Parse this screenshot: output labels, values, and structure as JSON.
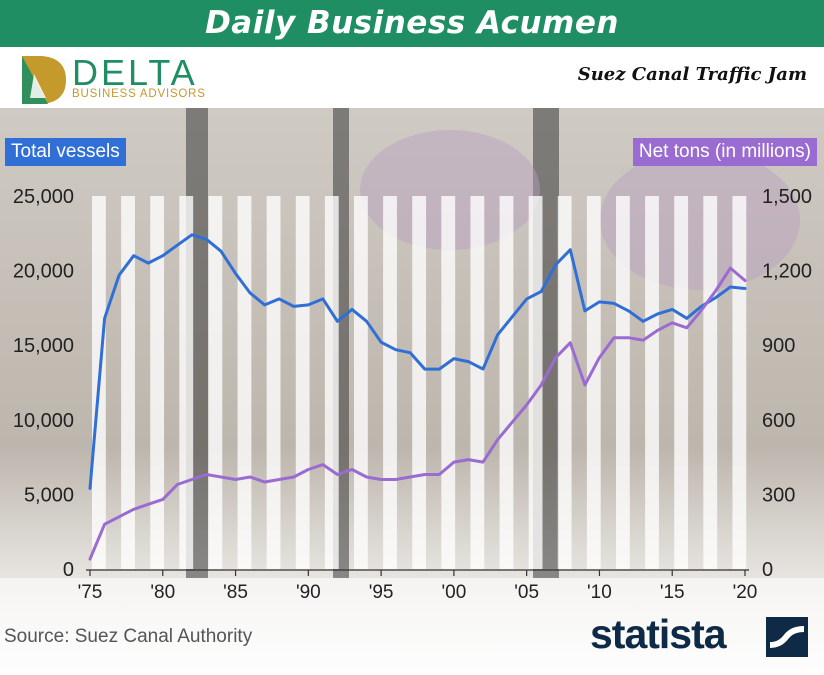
{
  "banner": {
    "title": "Daily Business Acumen"
  },
  "logo": {
    "word": "DELTA",
    "tagline": "BUSINESS ADVISORS"
  },
  "subtitle": "Suez Canal Traffic Jam",
  "source": "Source: Suez Canal Authority",
  "brand": {
    "word": "statista"
  },
  "colors": {
    "banner": "#1f8f63",
    "vessels": "#2f6fd6",
    "tons": "#9a6cd1",
    "brand": "#0e2a47"
  },
  "chart_data": {
    "type": "line",
    "title": "Suez Canal Traffic Jam",
    "x": [
      1975,
      1976,
      1977,
      1978,
      1979,
      1980,
      1981,
      1982,
      1983,
      1984,
      1985,
      1986,
      1987,
      1988,
      1989,
      1990,
      1991,
      1992,
      1993,
      1994,
      1995,
      1996,
      1997,
      1998,
      1999,
      2000,
      2001,
      2002,
      2003,
      2004,
      2005,
      2006,
      2007,
      2008,
      2009,
      2010,
      2011,
      2012,
      2013,
      2014,
      2015,
      2016,
      2017,
      2018,
      2019,
      2020
    ],
    "x_tick_labels": [
      "'75",
      "'80",
      "'85",
      "'90",
      "'95",
      "'00",
      "'05",
      "'10",
      "'15",
      "'20"
    ],
    "x_tick_values": [
      1975,
      1980,
      1985,
      1990,
      1995,
      2000,
      2005,
      2010,
      2015,
      2020
    ],
    "left_axis": {
      "label": "Total vessels",
      "ylim": [
        0,
        25000
      ],
      "ticks": [
        "0",
        "5,000",
        "10,000",
        "15,000",
        "20,000",
        "25,000"
      ],
      "tick_values": [
        0,
        5000,
        10000,
        15000,
        20000,
        25000
      ]
    },
    "right_axis": {
      "label": "Net tons (in millions)",
      "ylim": [
        0,
        1500
      ],
      "ticks": [
        "0",
        "300",
        "600",
        "900",
        "1,200",
        "1,500"
      ],
      "tick_values": [
        0,
        300,
        600,
        900,
        1200,
        1500
      ]
    },
    "series": [
      {
        "name": "Total vessels",
        "axis": "left",
        "color": "#2f6fd6",
        "values": [
          5400,
          16800,
          19700,
          21000,
          20500,
          21000,
          21700,
          22400,
          22100,
          21300,
          19800,
          18500,
          17700,
          18100,
          17600,
          17700,
          18100,
          16600,
          17400,
          16600,
          15200,
          14700,
          14500,
          13400,
          13400,
          14100,
          13900,
          13400,
          15700,
          16900,
          18100,
          18600,
          20400,
          21400,
          17300,
          17900,
          17800,
          17300,
          16600,
          17100,
          17400,
          16800,
          17600,
          18200,
          18900,
          18800
        ]
      },
      {
        "name": "Net tons (in millions)",
        "axis": "right",
        "color": "#9a6cd1",
        "values": [
          40,
          180,
          210,
          240,
          260,
          280,
          340,
          360,
          380,
          370,
          360,
          370,
          350,
          360,
          370,
          400,
          420,
          380,
          400,
          370,
          360,
          360,
          370,
          380,
          380,
          430,
          440,
          430,
          520,
          590,
          660,
          740,
          850,
          910,
          740,
          850,
          930,
          930,
          920,
          960,
          990,
          970,
          1040,
          1120,
          1210,
          1160
        ]
      }
    ],
    "grid": false,
    "legend": "none"
  }
}
